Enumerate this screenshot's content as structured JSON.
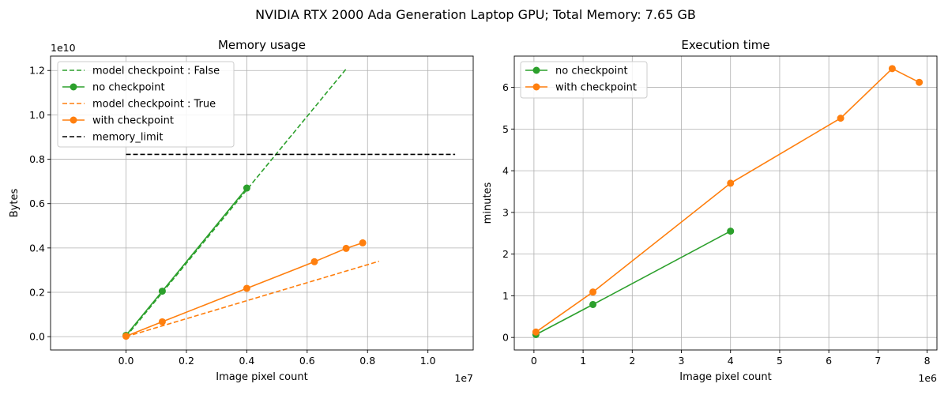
{
  "figure": {
    "suptitle": "NVIDIA RTX 2000 Ada Generation Laptop GPU; Total Memory: 7.65 GB"
  },
  "colors": {
    "green": "#2ca02c",
    "orange": "#ff7f0e",
    "limit": "#000000",
    "grid": "#b0b0b0"
  },
  "chart_data": [
    {
      "type": "line",
      "title": "Memory usage",
      "xlabel": "Image pixel count",
      "ylabel": "Bytes",
      "x_offset_label": "1e7",
      "y_offset_label": "1e10",
      "xlim": [
        -0.25,
        1.15
      ],
      "ylim": [
        -0.06,
        1.265
      ],
      "xticks": [
        0.0,
        0.2,
        0.4,
        0.6,
        0.8,
        1.0
      ],
      "xtick_labels": [
        "0.0",
        "0.2",
        "0.4",
        "0.6",
        "0.8",
        "1.0"
      ],
      "yticks": [
        0.0,
        0.2,
        0.4,
        0.6,
        0.8,
        1.0,
        1.2
      ],
      "ytick_labels": [
        "0.0",
        "0.2",
        "0.4",
        "0.6",
        "0.8",
        "1.0",
        "1.2"
      ],
      "grid": true,
      "legend_position": "top-left",
      "series": [
        {
          "name": "model checkpoint : False",
          "style": "dashed",
          "color": "green",
          "marker": false,
          "x": [
            0.0,
            0.728
          ],
          "y": [
            0.0,
            1.205
          ]
        },
        {
          "name": "no checkpoint",
          "style": "solid",
          "color": "green",
          "marker": true,
          "x": [
            0.0,
            0.12,
            0.4
          ],
          "y": [
            0.006,
            0.205,
            0.67
          ]
        },
        {
          "name": "model checkpoint : True",
          "style": "dashed",
          "color": "orange",
          "marker": false,
          "x": [
            0.0,
            0.838
          ],
          "y": [
            0.0,
            0.34
          ]
        },
        {
          "name": "with checkpoint",
          "style": "solid",
          "color": "orange",
          "marker": true,
          "x": [
            0.0,
            0.12,
            0.4,
            0.624,
            0.729,
            0.784
          ],
          "y": [
            0.002,
            0.067,
            0.218,
            0.338,
            0.398,
            0.423
          ]
        },
        {
          "name": "memory_limit",
          "style": "dashed",
          "color": "limit",
          "marker": false,
          "x": [
            0.0,
            1.09
          ],
          "y": [
            0.822,
            0.822
          ]
        }
      ]
    },
    {
      "type": "line",
      "title": "Execution time",
      "xlabel": "Image pixel count",
      "ylabel": "minutes",
      "x_offset_label": "1e6",
      "xlim": [
        -0.4,
        8.2
      ],
      "ylim": [
        -0.3,
        6.75
      ],
      "xticks": [
        0,
        1,
        2,
        3,
        4,
        5,
        6,
        7,
        8
      ],
      "xtick_labels": [
        "0",
        "1",
        "2",
        "3",
        "4",
        "5",
        "6",
        "7",
        "8"
      ],
      "yticks": [
        0,
        1,
        2,
        3,
        4,
        5,
        6
      ],
      "ytick_labels": [
        "0",
        "1",
        "2",
        "3",
        "4",
        "5",
        "6"
      ],
      "grid": true,
      "legend_position": "top-left",
      "series": [
        {
          "name": "no checkpoint",
          "style": "solid",
          "color": "green",
          "marker": true,
          "x": [
            0.04,
            1.2,
            4.0
          ],
          "y": [
            0.07,
            0.79,
            2.55
          ]
        },
        {
          "name": "with checkpoint",
          "style": "solid",
          "color": "orange",
          "marker": true,
          "x": [
            0.04,
            1.2,
            4.0,
            6.24,
            7.29,
            7.84
          ],
          "y": [
            0.13,
            1.09,
            3.7,
            5.26,
            6.45,
            6.12
          ]
        }
      ]
    }
  ]
}
